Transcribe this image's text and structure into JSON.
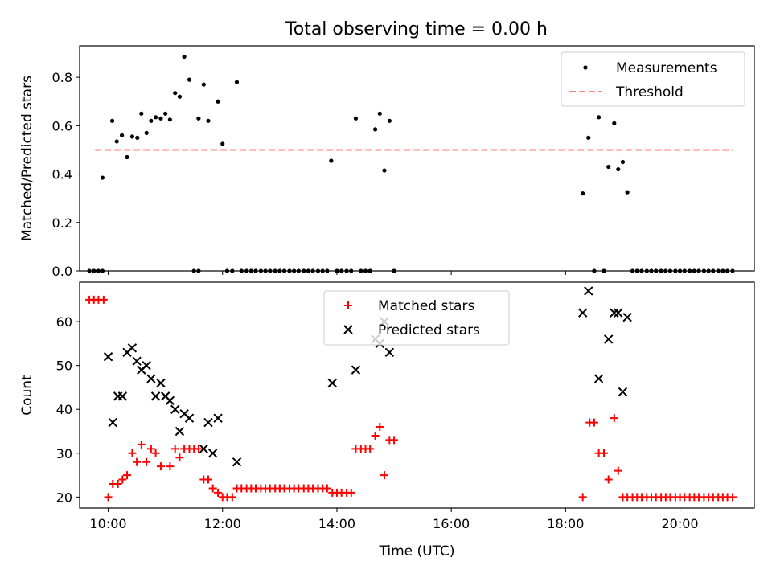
{
  "figure": {
    "title": "Total observing time = 0.00 h"
  },
  "chart_data": [
    {
      "type": "scatter",
      "xlabel": "",
      "ylabel": "Matched/Predicted stars",
      "xlim": [
        9.5,
        21.3
      ],
      "ylim": [
        0.0,
        0.93
      ],
      "y_ticks": [
        0.0,
        0.2,
        0.4,
        0.6,
        0.8
      ],
      "y_tick_labels": [
        "0.0",
        "0.2",
        "0.4",
        "0.6",
        "0.8"
      ],
      "x_ticks": [
        10,
        12,
        14,
        16,
        18,
        20
      ],
      "legend_position": "top-right",
      "legend": [
        "Measurements",
        "Threshold"
      ],
      "threshold": {
        "name": "Threshold",
        "y": 0.5,
        "x_range": [
          9.77,
          20.92
        ],
        "color": "#ff7f7f"
      },
      "series": [
        {
          "name": "Measurements",
          "color": "#000000",
          "x": [
            9.9,
            10.07,
            10.15,
            10.24,
            10.33,
            10.42,
            10.51,
            10.58,
            10.67,
            10.75,
            10.83,
            10.92,
            11.0,
            11.08,
            11.17,
            11.25,
            11.33,
            11.42,
            11.58,
            11.67,
            11.75,
            11.92,
            12.0,
            12.25,
            13.9,
            14.33,
            14.67,
            14.75,
            14.83,
            14.92,
            18.3,
            18.4,
            18.58,
            18.75,
            18.85,
            18.92,
            19.0,
            19.08,
            9.67,
            9.75,
            9.83,
            9.9,
            11.5,
            11.58,
            12.08,
            12.17,
            12.33,
            12.42,
            12.5,
            12.58,
            12.67,
            12.75,
            12.83,
            12.92,
            13.0,
            13.08,
            13.17,
            13.25,
            13.33,
            13.42,
            13.5,
            13.58,
            13.67,
            13.75,
            13.83,
            14.0,
            14.08,
            14.17,
            14.25,
            14.42,
            14.5,
            14.58,
            15.0,
            18.5,
            18.67,
            19.17,
            19.25,
            19.33,
            19.42,
            19.5,
            19.58,
            19.67,
            19.75,
            19.83,
            19.92,
            20.0,
            20.08,
            20.17,
            20.25,
            20.33,
            20.42,
            20.5,
            20.58,
            20.67,
            20.75,
            20.83,
            20.92
          ],
          "y": [
            0.385,
            0.62,
            0.535,
            0.56,
            0.47,
            0.555,
            0.55,
            0.65,
            0.57,
            0.62,
            0.635,
            0.63,
            0.65,
            0.625,
            0.735,
            0.72,
            0.885,
            0.79,
            0.63,
            0.77,
            0.62,
            0.7,
            0.525,
            0.78,
            0.455,
            0.63,
            0.585,
            0.65,
            0.415,
            0.62,
            0.32,
            0.55,
            0.635,
            0.43,
            0.61,
            0.42,
            0.45,
            0.325,
            0,
            0,
            0,
            0,
            0,
            0,
            0,
            0,
            0,
            0,
            0,
            0,
            0,
            0,
            0,
            0,
            0,
            0,
            0,
            0,
            0,
            0,
            0,
            0,
            0,
            0,
            0,
            0,
            0,
            0,
            0,
            0,
            0,
            0,
            0,
            0,
            0,
            0,
            0,
            0,
            0,
            0,
            0,
            0,
            0,
            0,
            0,
            0,
            0,
            0,
            0,
            0,
            0,
            0,
            0,
            0,
            0,
            0,
            0
          ]
        }
      ]
    },
    {
      "type": "scatter",
      "xlabel": "Time (UTC)",
      "ylabel": "Count",
      "xlim": [
        9.5,
        21.3
      ],
      "ylim": [
        17.5,
        69.0
      ],
      "y_ticks": [
        20,
        30,
        40,
        50,
        60
      ],
      "y_tick_labels": [
        "20",
        "30",
        "40",
        "50",
        "60"
      ],
      "x_ticks": [
        10,
        12,
        14,
        16,
        18,
        20
      ],
      "x_tick_labels": [
        "10:00",
        "12:00",
        "14:00",
        "16:00",
        "18:00",
        "20:00"
      ],
      "legend_position": "top-center",
      "legend": [
        "Matched stars",
        "Predicted stars"
      ],
      "series": [
        {
          "name": "Matched stars",
          "marker": "plus",
          "color": "#ff0000",
          "x": [
            9.67,
            9.75,
            9.83,
            9.92,
            10.0,
            10.08,
            10.17,
            10.25,
            10.33,
            10.42,
            10.5,
            10.58,
            10.67,
            10.75,
            10.83,
            10.92,
            11.08,
            11.17,
            11.25,
            11.33,
            11.42,
            11.5,
            11.58,
            11.67,
            11.75,
            11.83,
            11.92,
            12.0,
            12.08,
            12.17,
            12.25,
            12.33,
            12.42,
            12.5,
            12.58,
            12.67,
            12.75,
            12.83,
            12.92,
            13.0,
            13.08,
            13.17,
            13.25,
            13.33,
            13.42,
            13.5,
            13.58,
            13.67,
            13.75,
            13.83,
            13.92,
            14.0,
            14.08,
            14.17,
            14.25,
            14.33,
            14.42,
            14.5,
            14.58,
            14.67,
            14.75,
            14.83,
            14.92,
            15.0,
            18.3,
            18.42,
            18.5,
            18.58,
            18.67,
            18.75,
            18.85,
            18.92,
            19.0,
            19.08,
            19.17,
            19.25,
            19.33,
            19.42,
            19.5,
            19.58,
            19.67,
            19.75,
            19.83,
            19.92,
            20.0,
            20.08,
            20.17,
            20.25,
            20.33,
            20.42,
            20.5,
            20.58,
            20.67,
            20.75,
            20.83,
            20.92
          ],
          "y": [
            65,
            65,
            65,
            65,
            20,
            23,
            23,
            24,
            25,
            30,
            28,
            32,
            28,
            31,
            30,
            27,
            27,
            31,
            29,
            31,
            31,
            31,
            31,
            24,
            24,
            22,
            21,
            20,
            20,
            20,
            22,
            22,
            22,
            22,
            22,
            22,
            22,
            22,
            22,
            22,
            22,
            22,
            22,
            22,
            22,
            22,
            22,
            22,
            22,
            22,
            21,
            21,
            21,
            21,
            21,
            31,
            31,
            31,
            31,
            34,
            36,
            25,
            33,
            33,
            20,
            37,
            37,
            30,
            30,
            24,
            38,
            26,
            20,
            20,
            20,
            20,
            20,
            20,
            20,
            20,
            20,
            20,
            20,
            20,
            20,
            20,
            20,
            20,
            20,
            20,
            20,
            20,
            20,
            20,
            20,
            20
          ]
        },
        {
          "name": "Predicted stars",
          "marker": "x",
          "color": "#000000",
          "x": [
            10.0,
            10.08,
            10.17,
            10.25,
            10.33,
            10.42,
            10.5,
            10.58,
            10.67,
            10.75,
            10.83,
            10.92,
            11.0,
            11.08,
            11.17,
            11.25,
            11.33,
            11.42,
            11.67,
            11.75,
            11.83,
            11.92,
            12.25,
            13.92,
            14.33,
            14.67,
            14.75,
            14.83,
            14.92,
            18.3,
            18.4,
            18.58,
            18.75,
            18.85,
            18.92,
            19.0,
            19.08
          ],
          "y": [
            52,
            37,
            43,
            43,
            53,
            54,
            51,
            49,
            50,
            47,
            43,
            46,
            43,
            42,
            40,
            35,
            39,
            38,
            31,
            37,
            30,
            38,
            28,
            46,
            49,
            56,
            55,
            60,
            53,
            62,
            67,
            47,
            56,
            62,
            62,
            44,
            61
          ]
        }
      ]
    }
  ]
}
